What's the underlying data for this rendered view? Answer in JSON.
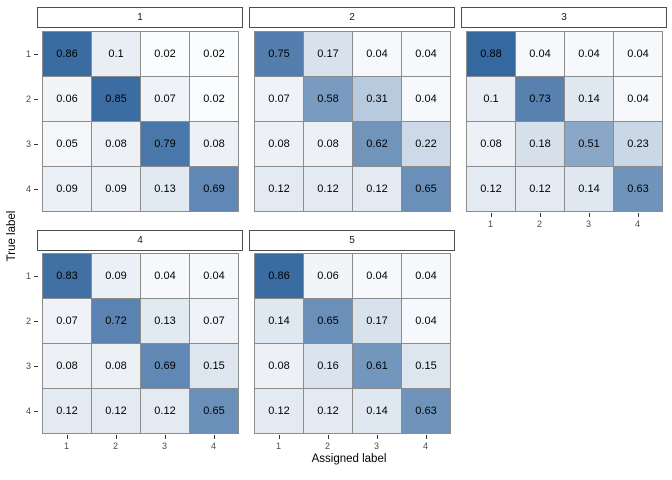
{
  "palette": {
    "low": "#ffffff",
    "high": "#1a5392",
    "cell_border": "#8c8c8c",
    "strip_border": "#4d4d4d",
    "tick_text": "#4d4d4d"
  },
  "chart_data": {
    "type": "heatmap",
    "title": "",
    "xlabel": "Assigned label",
    "ylabel": "True label",
    "x_ticks": [
      "1",
      "2",
      "3",
      "4"
    ],
    "y_ticks": [
      "1",
      "2",
      "3",
      "4"
    ],
    "value_range": [
      0,
      1
    ],
    "legend": "none",
    "facets": [
      {
        "label": "1",
        "matrix": [
          [
            0.86,
            0.1,
            0.02,
            0.02
          ],
          [
            0.06,
            0.85,
            0.07,
            0.02
          ],
          [
            0.05,
            0.08,
            0.79,
            0.08
          ],
          [
            0.09,
            0.09,
            0.13,
            0.69
          ]
        ]
      },
      {
        "label": "2",
        "matrix": [
          [
            0.75,
            0.17,
            0.04,
            0.04
          ],
          [
            0.07,
            0.58,
            0.31,
            0.04
          ],
          [
            0.08,
            0.08,
            0.62,
            0.22
          ],
          [
            0.12,
            0.12,
            0.12,
            0.65
          ]
        ]
      },
      {
        "label": "3",
        "matrix": [
          [
            0.88,
            0.04,
            0.04,
            0.04
          ],
          [
            0.1,
            0.73,
            0.14,
            0.04
          ],
          [
            0.08,
            0.18,
            0.51,
            0.23
          ],
          [
            0.12,
            0.12,
            0.14,
            0.63
          ]
        ]
      },
      {
        "label": "4",
        "matrix": [
          [
            0.83,
            0.09,
            0.04,
            0.04
          ],
          [
            0.07,
            0.72,
            0.13,
            0.07
          ],
          [
            0.08,
            0.08,
            0.69,
            0.15
          ],
          [
            0.12,
            0.12,
            0.12,
            0.65
          ]
        ]
      },
      {
        "label": "5",
        "matrix": [
          [
            0.86,
            0.06,
            0.04,
            0.04
          ],
          [
            0.14,
            0.65,
            0.17,
            0.04
          ],
          [
            0.08,
            0.16,
            0.61,
            0.15
          ],
          [
            0.12,
            0.12,
            0.14,
            0.63
          ]
        ]
      }
    ]
  }
}
